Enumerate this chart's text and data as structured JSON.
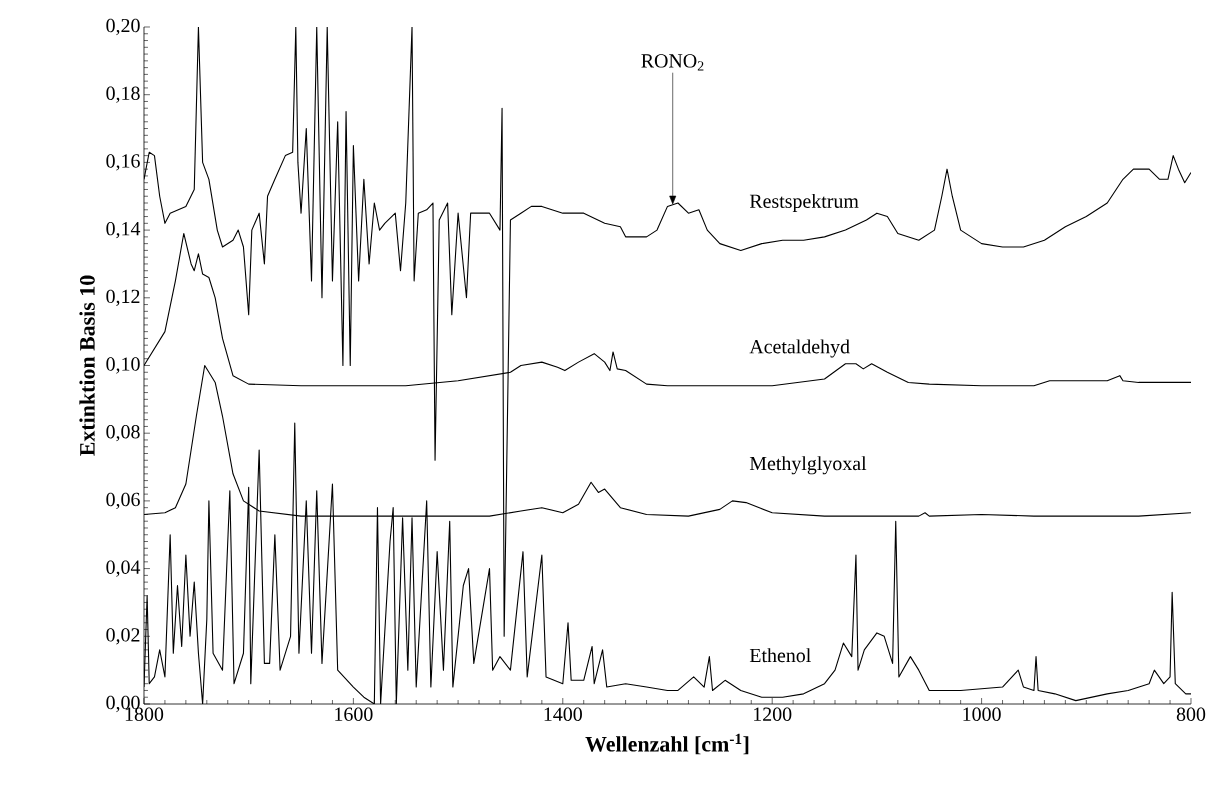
{
  "chart_data": {
    "type": "line",
    "xlabel": "Wellenzahl [cm$^{-1}$]",
    "ylabel": "Extinktion Basis 10",
    "xlim": [
      1800,
      800
    ],
    "xticks": [
      1800,
      1600,
      1400,
      1200,
      1000,
      800
    ],
    "ylim": [
      0,
      0.2
    ],
    "yticks": [
      {
        "value": 0,
        "label": "0,00"
      },
      {
        "value": 0.02,
        "label": "0,02"
      },
      {
        "value": 0.04,
        "label": "0,04"
      },
      {
        "value": 0.06,
        "label": "0,06"
      },
      {
        "value": 0.08,
        "label": "0,08"
      },
      {
        "value": 0.1,
        "label": "0,10"
      },
      {
        "value": 0.12,
        "label": "0,12"
      },
      {
        "value": 0.14,
        "label": "0,14"
      },
      {
        "value": 0.16,
        "label": "0,16"
      },
      {
        "value": 0.18,
        "label": "0,18"
      },
      {
        "value": 0.2,
        "label": "0,20"
      }
    ],
    "annotations": [
      {
        "text": "RONO$_{2}$",
        "x": 1295,
        "y": 0.1475
      }
    ],
    "series": [
      {
        "name": "Restspektrum",
        "color": "#000000",
        "x": [
          1800,
          1795,
          1790,
          1785,
          1780,
          1775,
          1760,
          1752,
          1748,
          1744,
          1738,
          1730,
          1725,
          1715,
          1710,
          1705,
          1700,
          1697,
          1690,
          1685,
          1682,
          1675,
          1665,
          1658,
          1655,
          1653,
          1650,
          1645,
          1640,
          1635,
          1630,
          1625,
          1620,
          1615,
          1610,
          1607,
          1603,
          1600,
          1595,
          1590,
          1585,
          1580,
          1575,
          1570,
          1560,
          1555,
          1550,
          1544,
          1542,
          1538,
          1530,
          1524,
          1522,
          1518,
          1510,
          1506,
          1500,
          1492,
          1488,
          1470,
          1460,
          1458,
          1456,
          1450,
          1440,
          1430,
          1420,
          1400,
          1380,
          1360,
          1345,
          1340,
          1320,
          1310,
          1300,
          1290,
          1280,
          1270,
          1262,
          1250,
          1230,
          1210,
          1190,
          1170,
          1150,
          1130,
          1110,
          1100,
          1090,
          1080,
          1060,
          1045,
          1038,
          1033,
          1028,
          1020,
          1000,
          980,
          960,
          940,
          920,
          900,
          880,
          865,
          855,
          840,
          830,
          822,
          817,
          812,
          806,
          800
        ],
        "values": [
          0.155,
          0.163,
          0.162,
          0.15,
          0.142,
          0.145,
          0.147,
          0.152,
          0.2,
          0.16,
          0.155,
          0.14,
          0.135,
          0.137,
          0.14,
          0.135,
          0.115,
          0.14,
          0.145,
          0.13,
          0.15,
          0.155,
          0.162,
          0.163,
          0.2,
          0.16,
          0.145,
          0.17,
          0.125,
          0.2,
          0.12,
          0.2,
          0.125,
          0.172,
          0.1,
          0.175,
          0.1,
          0.165,
          0.125,
          0.155,
          0.13,
          0.148,
          0.14,
          0.142,
          0.145,
          0.128,
          0.148,
          0.2,
          0.125,
          0.145,
          0.146,
          0.148,
          0.072,
          0.143,
          0.148,
          0.115,
          0.145,
          0.12,
          0.145,
          0.145,
          0.14,
          0.176,
          0.02,
          0.143,
          0.145,
          0.147,
          0.147,
          0.145,
          0.145,
          0.142,
          0.141,
          0.138,
          0.138,
          0.14,
          0.147,
          0.148,
          0.145,
          0.146,
          0.14,
          0.136,
          0.134,
          0.136,
          0.137,
          0.137,
          0.138,
          0.14,
          0.143,
          0.145,
          0.144,
          0.139,
          0.137,
          0.14,
          0.15,
          0.158,
          0.15,
          0.14,
          0.136,
          0.135,
          0.135,
          0.137,
          0.141,
          0.144,
          0.148,
          0.155,
          0.158,
          0.158,
          0.155,
          0.155,
          0.162,
          0.158,
          0.154,
          0.157
        ]
      },
      {
        "name": "Acetaldehyd",
        "color": "#000000",
        "x": [
          1800,
          1790,
          1780,
          1770,
          1762,
          1755,
          1752,
          1748,
          1744,
          1738,
          1732,
          1725,
          1715,
          1700,
          1650,
          1550,
          1500,
          1450,
          1440,
          1420,
          1405,
          1398,
          1385,
          1370,
          1360,
          1355,
          1352,
          1348,
          1340,
          1320,
          1300,
          1200,
          1150,
          1130,
          1120,
          1113,
          1105,
          1090,
          1070,
          1050,
          1000,
          950,
          935,
          920,
          880,
          868,
          865,
          850,
          800
        ],
        "values": [
          0.1,
          0.105,
          0.11,
          0.125,
          0.139,
          0.13,
          0.128,
          0.133,
          0.127,
          0.126,
          0.12,
          0.108,
          0.097,
          0.0945,
          0.094,
          0.094,
          0.0955,
          0.098,
          0.1,
          0.101,
          0.0995,
          0.0985,
          0.101,
          0.1035,
          0.101,
          0.0985,
          0.104,
          0.099,
          0.0985,
          0.0945,
          0.094,
          0.094,
          0.096,
          0.1005,
          0.1005,
          0.099,
          0.1005,
          0.098,
          0.095,
          0.0945,
          0.094,
          0.094,
          0.0955,
          0.0955,
          0.0955,
          0.097,
          0.0955,
          0.095,
          0.095
        ]
      },
      {
        "name": "Methylglyoxal",
        "color": "#000000",
        "x": [
          1800,
          1780,
          1770,
          1760,
          1750,
          1742,
          1738,
          1732,
          1725,
          1715,
          1705,
          1690,
          1650,
          1550,
          1470,
          1440,
          1420,
          1400,
          1385,
          1373,
          1366,
          1360,
          1345,
          1320,
          1280,
          1250,
          1238,
          1225,
          1200,
          1150,
          1060,
          1054,
          1050,
          1000,
          950,
          850,
          800
        ],
        "values": [
          0.056,
          0.0565,
          0.058,
          0.065,
          0.085,
          0.1,
          0.098,
          0.095,
          0.085,
          0.068,
          0.06,
          0.057,
          0.0555,
          0.0555,
          0.0555,
          0.057,
          0.058,
          0.0565,
          0.059,
          0.0655,
          0.0625,
          0.0635,
          0.058,
          0.056,
          0.0555,
          0.0575,
          0.06,
          0.0595,
          0.0565,
          0.0555,
          0.0555,
          0.0565,
          0.0555,
          0.056,
          0.0555,
          0.0555,
          0.0565
        ]
      },
      {
        "name": "Ethenol",
        "color": "#000000",
        "x": [
          1800,
          1797,
          1795,
          1790,
          1785,
          1780,
          1775,
          1772,
          1768,
          1764,
          1760,
          1756,
          1752,
          1748,
          1744,
          1740,
          1738,
          1734,
          1725,
          1718,
          1714,
          1705,
          1700,
          1698,
          1690,
          1685,
          1680,
          1675,
          1670,
          1660,
          1656,
          1652,
          1645,
          1640,
          1635,
          1630,
          1620,
          1615,
          1600,
          1590,
          1580,
          1577,
          1574,
          1565,
          1562,
          1559,
          1553,
          1548,
          1544,
          1540,
          1530,
          1526,
          1520,
          1514,
          1508,
          1505,
          1495,
          1490,
          1485,
          1470,
          1467,
          1460,
          1450,
          1438,
          1434,
          1420,
          1416,
          1400,
          1395,
          1392,
          1380,
          1372,
          1370,
          1362,
          1358,
          1340,
          1320,
          1300,
          1290,
          1275,
          1265,
          1260,
          1257,
          1245,
          1230,
          1210,
          1190,
          1170,
          1150,
          1140,
          1132,
          1124,
          1120,
          1118,
          1112,
          1100,
          1093,
          1085,
          1082,
          1079,
          1068,
          1060,
          1050,
          1020,
          980,
          965,
          960,
          950,
          948,
          946,
          930,
          910,
          880,
          860,
          840,
          835,
          826,
          820,
          818,
          815,
          805,
          800
        ],
        "values": [
          0.005,
          0.032,
          0.006,
          0.008,
          0.016,
          0.008,
          0.05,
          0.015,
          0.035,
          0.017,
          0.044,
          0.02,
          0.036,
          0.015,
          0.0,
          0.025,
          0.06,
          0.015,
          0.01,
          0.063,
          0.006,
          0.015,
          0.064,
          0.006,
          0.075,
          0.012,
          0.012,
          0.05,
          0.01,
          0.02,
          0.083,
          0.015,
          0.06,
          0.015,
          0.063,
          0.012,
          0.065,
          0.01,
          0.005,
          0.002,
          0.0,
          0.058,
          0.0,
          0.048,
          0.058,
          0.0,
          0.055,
          0.01,
          0.055,
          0.005,
          0.06,
          0.005,
          0.045,
          0.01,
          0.054,
          0.005,
          0.035,
          0.04,
          0.012,
          0.04,
          0.01,
          0.014,
          0.01,
          0.045,
          0.008,
          0.044,
          0.008,
          0.006,
          0.024,
          0.007,
          0.007,
          0.017,
          0.006,
          0.016,
          0.005,
          0.006,
          0.005,
          0.004,
          0.004,
          0.008,
          0.005,
          0.014,
          0.004,
          0.007,
          0.004,
          0.002,
          0.002,
          0.003,
          0.006,
          0.01,
          0.018,
          0.014,
          0.044,
          0.01,
          0.016,
          0.021,
          0.02,
          0.012,
          0.054,
          0.008,
          0.014,
          0.01,
          0.004,
          0.004,
          0.005,
          0.01,
          0.005,
          0.004,
          0.014,
          0.004,
          0.003,
          0.001,
          0.003,
          0.004,
          0.006,
          0.01,
          0.006,
          0.008,
          0.033,
          0.006,
          0.003,
          0.003
        ]
      }
    ]
  }
}
